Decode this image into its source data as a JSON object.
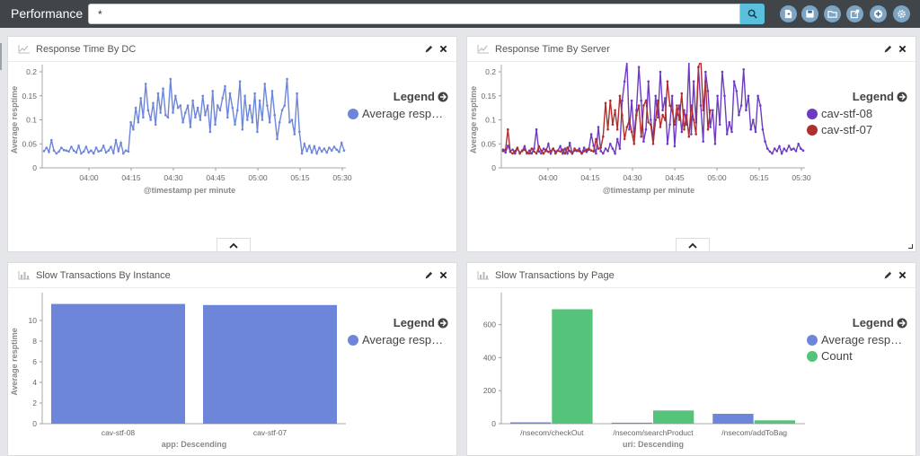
{
  "app": {
    "title": "Performance"
  },
  "search": {
    "value": "*"
  },
  "toolbar": {
    "buttons": [
      "new-dashboard-icon",
      "save-icon",
      "open-folder-icon",
      "share-icon",
      "add-panel-icon",
      "settings-icon"
    ]
  },
  "panels": [
    {
      "title": "Response Time By DC"
    },
    {
      "title": "Response Time By Server"
    },
    {
      "title": "Slow Transactions By Instance"
    },
    {
      "title": "Slow Transactions by Page"
    }
  ],
  "colors": {
    "blue": "#6d86d9",
    "purple": "#6c3bc2",
    "red": "#b02e2e",
    "green": "#55c47a"
  },
  "chart_data": [
    {
      "type": "line",
      "ylabel": "Average resptime",
      "xlabel": "@timestamp per minute",
      "ylim": [
        0,
        0.2
      ],
      "yticks": [
        "0",
        "0.05",
        "0.1",
        "0.15",
        "0.2"
      ],
      "xticks": [
        "04:00",
        "04:15",
        "04:30",
        "04:45",
        "05:00",
        "05:15",
        "05:30"
      ],
      "legend_title": "Legend",
      "series": [
        {
          "name": "Average resp…",
          "color": "#6d86d9",
          "values": [
            0.035,
            0.042,
            0.033,
            0.058,
            0.036,
            0.03,
            0.034,
            0.042,
            0.037,
            0.036,
            0.034,
            0.044,
            0.036,
            0.032,
            0.046,
            0.03,
            0.034,
            0.044,
            0.032,
            0.036,
            0.03,
            0.042,
            0.034,
            0.036,
            0.046,
            0.032,
            0.036,
            0.044,
            0.031,
            0.058,
            0.035,
            0.052,
            0.03,
            0.036,
            0.034,
            0.095,
            0.08,
            0.125,
            0.095,
            0.145,
            0.105,
            0.175,
            0.12,
            0.1,
            0.135,
            0.09,
            0.155,
            0.115,
            0.165,
            0.11,
            0.105,
            0.185,
            0.115,
            0.15,
            0.125,
            0.13,
            0.095,
            0.115,
            0.13,
            0.085,
            0.14,
            0.105,
            0.125,
            0.1,
            0.15,
            0.11,
            0.13,
            0.075,
            0.16,
            0.09,
            0.13,
            0.12,
            0.145,
            0.17,
            0.105,
            0.155,
            0.125,
            0.09,
            0.12,
            0.18,
            0.08,
            0.15,
            0.1,
            0.13,
            0.095,
            0.155,
            0.075,
            0.14,
            0.1,
            0.175,
            0.13,
            0.095,
            0.16,
            0.11,
            0.06,
            0.095,
            0.12,
            0.13,
            0.185,
            0.095,
            0.1,
            0.07,
            0.155,
            0.075,
            0.03,
            0.05,
            0.035,
            0.046,
            0.032,
            0.045,
            0.03,
            0.042,
            0.034,
            0.04,
            0.032,
            0.042,
            0.036,
            0.044,
            0.038,
            0.033,
            0.052,
            0.036
          ]
        }
      ]
    },
    {
      "type": "line",
      "ylabel": "Average resptime",
      "xlabel": "@timestamp per minute",
      "ylim": [
        0,
        0.2
      ],
      "yticks": [
        "0",
        "0.05",
        "0.1",
        "0.15",
        "0.2"
      ],
      "xticks": [
        "04:00",
        "04:15",
        "04:30",
        "04:45",
        "05:00",
        "05:15",
        "05:30"
      ],
      "legend_title": "Legend",
      "series": [
        {
          "name": "cav-stf-08",
          "color": "#6c3bc2",
          "values": [
            0.038,
            0.032,
            0.046,
            0.035,
            0.038,
            0.03,
            0.04,
            0.032,
            0.035,
            0.045,
            0.03,
            0.036,
            0.03,
            0.04,
            0.08,
            0.034,
            0.03,
            0.04,
            0.035,
            0.05,
            0.03,
            0.04,
            0.034,
            0.036,
            0.045,
            0.03,
            0.04,
            0.03,
            0.052,
            0.03,
            0.036,
            0.035,
            0.04,
            0.03,
            0.042,
            0.033,
            0.038,
            0.07,
            0.046,
            0.03,
            0.085,
            0.035,
            0.03,
            0.04,
            0.035,
            0.05,
            0.04,
            0.03,
            0.06,
            0.04,
            0.14,
            0.18,
            0.22,
            0.08,
            0.14,
            0.065,
            0.12,
            0.21,
            0.14,
            0.055,
            0.08,
            0.18,
            0.1,
            0.06,
            0.15,
            0.105,
            0.2,
            0.12,
            0.145,
            0.05,
            0.09,
            0.15,
            0.045,
            0.11,
            0.13,
            0.075,
            0.12,
            0.09,
            0.22,
            0.07,
            0.18,
            0.095,
            0.21,
            0.13,
            0.055,
            0.2,
            0.16,
            0.085,
            0.12,
            0.05,
            0.15,
            0.09,
            0.2,
            0.15,
            0.07,
            0.095,
            0.075,
            0.18,
            0.16,
            0.11,
            0.13,
            0.205,
            0.12,
            0.15,
            0.08,
            0.1,
            0.075,
            0.15,
            0.13,
            0.08,
            0.055,
            0.04,
            0.034,
            0.03,
            0.04,
            0.035,
            0.045,
            0.03,
            0.04,
            0.035,
            0.046,
            0.038,
            0.04,
            0.035,
            0.05,
            0.04,
            0.036
          ]
        },
        {
          "name": "cav-stf-07",
          "color": "#b02e2e",
          "values": [
            0.035,
            0.038,
            0.08,
            0.033,
            0.03,
            0.035,
            0.042,
            0.03,
            0.036,
            0.038,
            0.032,
            0.03,
            0.04,
            0.034,
            0.03,
            0.045,
            0.036,
            0.03,
            0.038,
            0.033,
            0.035,
            0.04,
            0.03,
            0.036,
            0.034,
            0.038,
            0.03,
            0.042,
            0.035,
            0.03,
            0.04,
            0.036,
            0.035,
            0.03,
            0.035,
            0.038,
            0.04,
            0.036,
            0.034,
            0.06,
            0.04,
            0.042,
            0.065,
            0.135,
            0.08,
            0.14,
            0.09,
            0.12,
            0.08,
            0.15,
            0.11,
            0.06,
            0.085,
            0.1,
            0.075,
            0.05,
            0.11,
            0.13,
            0.065,
            0.13,
            0.14,
            0.095,
            0.09,
            0.05,
            0.1,
            0.14,
            0.085,
            0.11,
            0.1,
            0.18,
            0.13,
            0.12,
            0.09,
            0.13,
            0.1,
            0.155,
            0.08,
            0.11,
            0.065,
            0.13,
            0.1,
            0.07,
            0.21,
            0.225,
            0.12,
            0.18,
            0.08,
            0.12
          ]
        }
      ]
    },
    {
      "type": "bar",
      "ylabel": "Average resptime",
      "xlabel": "app: Descending",
      "ylim": [
        0,
        12
      ],
      "yticks": [
        "0",
        "2",
        "4",
        "6",
        "8",
        "10"
      ],
      "categories": [
        "cav-stf-08",
        "cav-stf-07"
      ],
      "legend_title": "Legend",
      "series": [
        {
          "name": "Average resp…",
          "color": "#6d86d9",
          "values": [
            11.6,
            11.5
          ]
        }
      ]
    },
    {
      "type": "bar",
      "ylabel": "",
      "xlabel": "uri: Descending",
      "ylim": [
        0,
        750
      ],
      "yticks": [
        "0",
        "200",
        "400",
        "600"
      ],
      "categories": [
        "/nsecom/checkOut",
        "/nsecom/searchProduct",
        "/nsecom/addToBag"
      ],
      "legend_title": "Legend",
      "series": [
        {
          "name": "Average resp…",
          "color": "#6d86d9",
          "values": [
            8,
            6,
            60
          ]
        },
        {
          "name": "Count",
          "color": "#55c47a",
          "values": [
            693,
            80,
            20
          ]
        }
      ]
    }
  ]
}
